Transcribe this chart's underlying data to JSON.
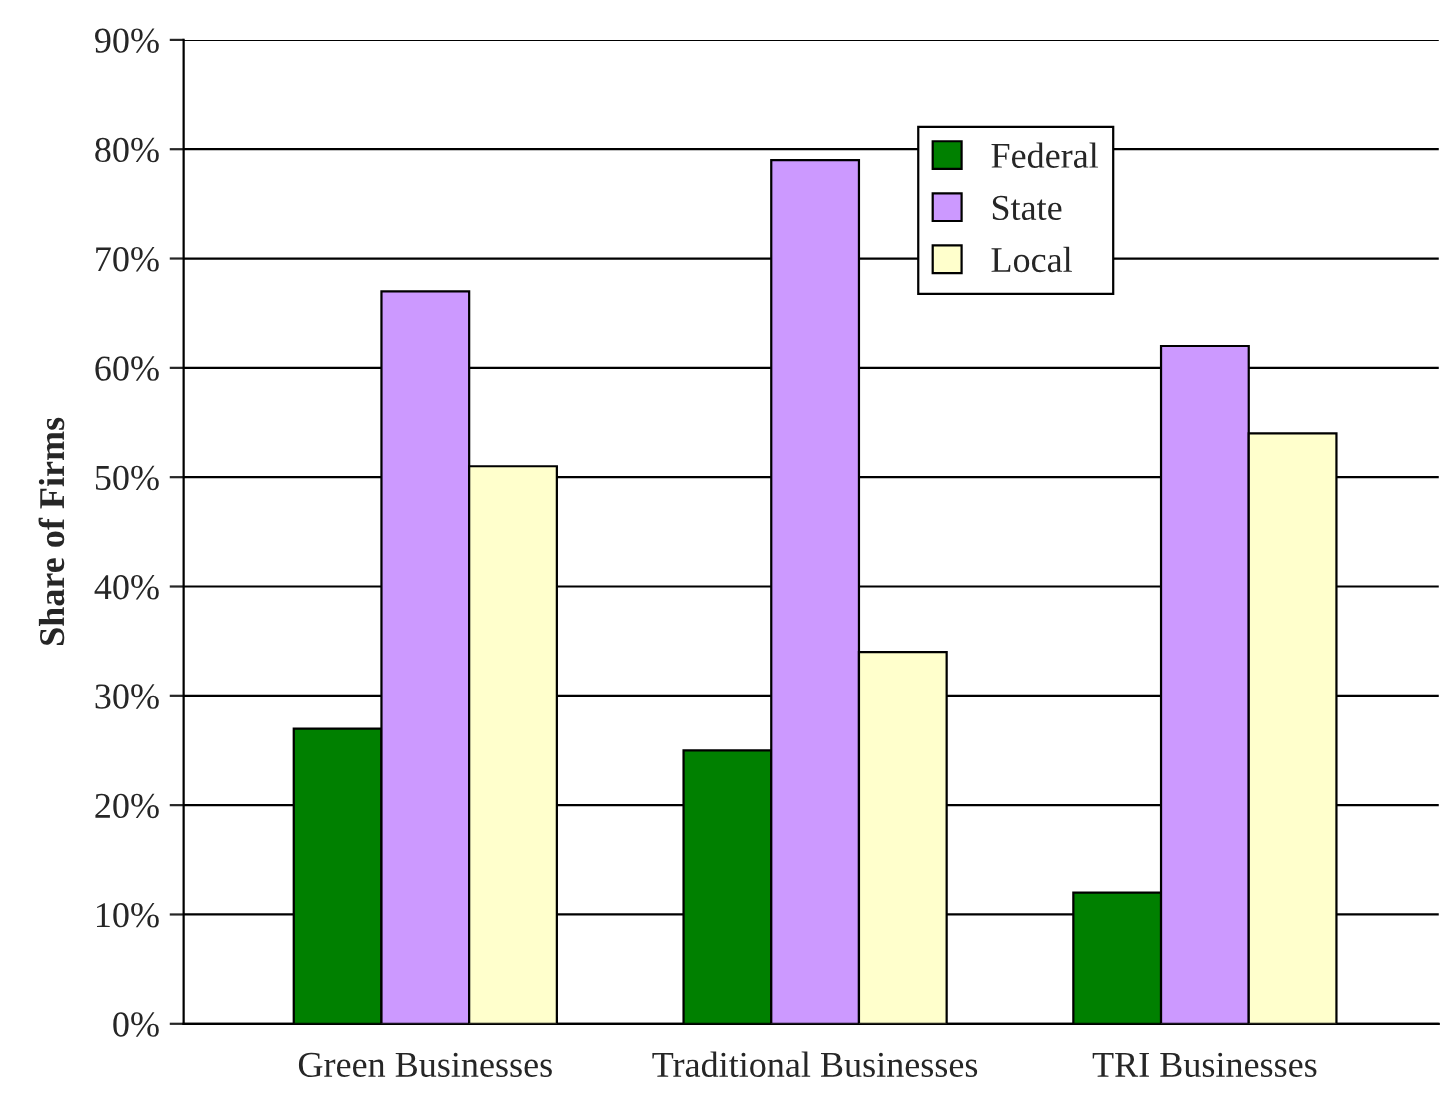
{
  "chart_data": {
    "type": "bar",
    "ylabel": "Share of Firms",
    "categories": [
      "Green Businesses",
      "Traditional Businesses",
      "TRI Businesses"
    ],
    "series": [
      {
        "name": "Federal",
        "color": "#008000",
        "values": [
          27,
          25,
          12
        ]
      },
      {
        "name": "State",
        "color": "#cc99ff",
        "values": [
          67,
          79,
          62
        ]
      },
      {
        "name": "Local",
        "color": "#ffffcc",
        "values": [
          51,
          34,
          54
        ]
      }
    ],
    "ylim": [
      0,
      90
    ],
    "yticks": [
      {
        "value": 0,
        "label": "0%"
      },
      {
        "value": 10,
        "label": "10%"
      },
      {
        "value": 20,
        "label": "20%"
      },
      {
        "value": 30,
        "label": "30%"
      },
      {
        "value": 40,
        "label": "40%"
      },
      {
        "value": 50,
        "label": "50%"
      },
      {
        "value": 60,
        "label": "60%"
      },
      {
        "value": 70,
        "label": "70%"
      },
      {
        "value": 80,
        "label": "80%"
      },
      {
        "value": 90,
        "label": "90%"
      }
    ],
    "grid": "y",
    "legend": "top right"
  }
}
